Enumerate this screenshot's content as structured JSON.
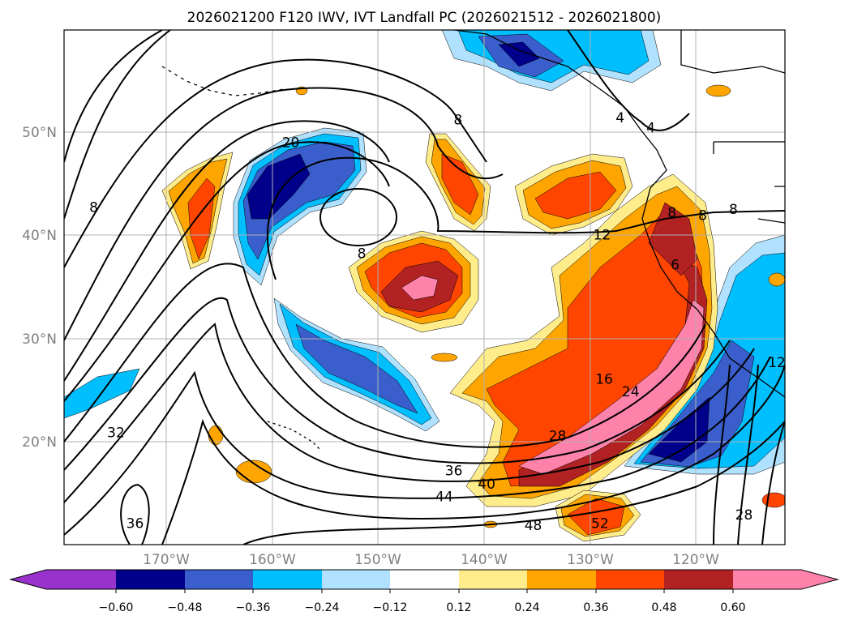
{
  "title": "2026021200 F120 IWV, IVT Landfall PC (2026021512 - 2026021800)",
  "axes": {
    "lat_ticks": [
      "50°N",
      "40°N",
      "30°N",
      "20°N"
    ],
    "lon_ticks": [
      "170°W",
      "160°W",
      "150°W",
      "140°W",
      "130°W",
      "120°W"
    ]
  },
  "chart_data": {
    "type": "heatmap",
    "description_type": "filled contour map with line contours",
    "extent": {
      "lon": [
        -180,
        -112
      ],
      "lat": [
        10,
        60
      ]
    },
    "colorbar": {
      "ticks": [
        "-0.60",
        "-0.48",
        "-0.36",
        "-0.24",
        "-0.12",
        "0.12",
        "0.24",
        "0.36",
        "0.48",
        "0.60"
      ],
      "levels": [
        -0.6,
        -0.48,
        -0.36,
        -0.24,
        -0.12,
        0.12,
        0.24,
        0.36,
        0.48,
        0.6
      ],
      "colors": [
        "#9932CC",
        "#00008B",
        "#3A5FCD",
        "#00BFFF",
        "#B0E2FF",
        "#FFFFFF",
        "#FFEC8B",
        "#FFA500",
        "#FF4500",
        "#B22222",
        "#FF82AB"
      ],
      "extend": "both"
    },
    "contour_labels": [
      {
        "value": "8",
        "lon": -142.8,
        "lat": 51.3
      },
      {
        "value": "4",
        "lon": -127.5,
        "lat": 51.5
      },
      {
        "value": "4",
        "lon": -124.6,
        "lat": 50.5
      },
      {
        "value": "20",
        "lon": -158.6,
        "lat": 49.1
      },
      {
        "value": "8",
        "lon": -177.2,
        "lat": 42.8
      },
      {
        "value": "8",
        "lon": -151.9,
        "lat": 38.3
      },
      {
        "value": "12",
        "lon": -129.2,
        "lat": 40.1
      },
      {
        "value": "8",
        "lon": -122.6,
        "lat": 42.3
      },
      {
        "value": "8",
        "lon": -119.7,
        "lat": 42.0
      },
      {
        "value": "8",
        "lon": -116.8,
        "lat": 42.6
      },
      {
        "value": "6",
        "lon": -122.3,
        "lat": 37.2
      },
      {
        "value": "16",
        "lon": -129.0,
        "lat": 26.1
      },
      {
        "value": "24",
        "lon": -126.5,
        "lat": 24.9
      },
      {
        "value": "28",
        "lon": -133.4,
        "lat": 20.6
      },
      {
        "value": "32",
        "lon": -175.1,
        "lat": 20.9
      },
      {
        "value": "36",
        "lon": -143.2,
        "lat": 17.2
      },
      {
        "value": "40",
        "lon": -140.1,
        "lat": 15.9
      },
      {
        "value": "44",
        "lon": -144.1,
        "lat": 14.7
      },
      {
        "value": "36",
        "lon": -173.3,
        "lat": 12.1
      },
      {
        "value": "48",
        "lon": -135.7,
        "lat": 11.9
      },
      {
        "value": "52",
        "lon": -129.4,
        "lat": 12.1
      },
      {
        "value": "28",
        "lon": -115.8,
        "lat": 12.9
      },
      {
        "value": "12",
        "lon": -112.7,
        "lat": 27.7
      }
    ]
  }
}
